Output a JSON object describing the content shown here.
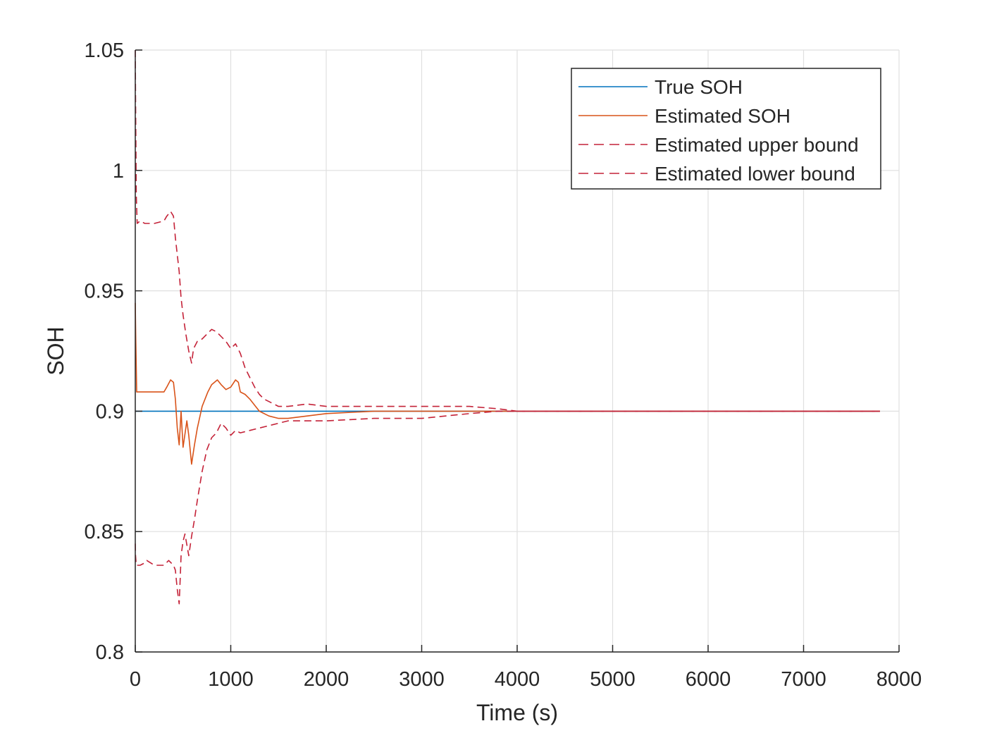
{
  "chart_data": {
    "type": "line",
    "title": "",
    "xlabel": "Time (s)",
    "ylabel": "SOH",
    "xlim": [
      0,
      8000
    ],
    "ylim": [
      0.8,
      1.05
    ],
    "xticks": [
      0,
      1000,
      2000,
      3000,
      4000,
      5000,
      6000,
      7000,
      8000
    ],
    "xtick_labels": [
      "0",
      "1000",
      "2000",
      "3000",
      "4000",
      "5000",
      "6000",
      "7000",
      "8000"
    ],
    "yticks": [
      0.8,
      0.85,
      0.9,
      0.95,
      1.0,
      1.05
    ],
    "ytick_labels": [
      "0.8",
      "0.85",
      "0.9",
      "0.95",
      "1",
      "1.05"
    ],
    "grid": true,
    "legend_position": "top-right",
    "series": [
      {
        "name": "True SOH",
        "color": "#0072BD",
        "style": "solid",
        "x": [
          0,
          7800
        ],
        "y": [
          0.9,
          0.9
        ]
      },
      {
        "name": "Estimated SOH",
        "color": "#D95319",
        "style": "solid",
        "x": [
          0,
          5,
          15,
          100,
          200,
          300,
          330,
          370,
          400,
          420,
          440,
          460,
          480,
          500,
          540,
          560,
          590,
          620,
          650,
          700,
          760,
          800,
          860,
          900,
          950,
          1000,
          1050,
          1080,
          1100,
          1150,
          1200,
          1300,
          1400,
          1500,
          1600,
          1800,
          2000,
          2500,
          3000,
          3500,
          3800,
          4000,
          5000,
          6000,
          7000,
          7800
        ],
        "y": [
          0.945,
          0.93,
          0.908,
          0.908,
          0.908,
          0.908,
          0.91,
          0.913,
          0.912,
          0.905,
          0.893,
          0.886,
          0.9,
          0.885,
          0.896,
          0.89,
          0.878,
          0.886,
          0.893,
          0.902,
          0.908,
          0.911,
          0.913,
          0.911,
          0.909,
          0.91,
          0.913,
          0.912,
          0.908,
          0.907,
          0.905,
          0.9,
          0.898,
          0.897,
          0.897,
          0.898,
          0.899,
          0.9,
          0.9,
          0.9,
          0.9,
          0.9,
          0.9,
          0.9,
          0.9,
          0.9
        ]
      },
      {
        "name": "Estimated upper bound",
        "color": "#C42238",
        "style": "dashed",
        "x": [
          0,
          3,
          10,
          20,
          50,
          100,
          200,
          300,
          330,
          370,
          400,
          420,
          440,
          460,
          480,
          500,
          530,
          560,
          590,
          610,
          650,
          700,
          750,
          800,
          850,
          900,
          950,
          1000,
          1050,
          1100,
          1150,
          1200,
          1250,
          1300,
          1350,
          1400,
          1500,
          1600,
          1800,
          2000,
          2500,
          3000,
          3200,
          3500,
          3800,
          4000,
          5000,
          6000,
          7000,
          7800
        ],
        "y": [
          1.05,
          1.03,
          0.99,
          0.978,
          0.979,
          0.978,
          0.978,
          0.979,
          0.981,
          0.983,
          0.981,
          0.972,
          0.965,
          0.958,
          0.947,
          0.94,
          0.932,
          0.925,
          0.92,
          0.926,
          0.929,
          0.93,
          0.932,
          0.934,
          0.933,
          0.931,
          0.929,
          0.926,
          0.928,
          0.924,
          0.918,
          0.914,
          0.91,
          0.907,
          0.905,
          0.904,
          0.902,
          0.902,
          0.903,
          0.902,
          0.902,
          0.902,
          0.902,
          0.902,
          0.901,
          0.9,
          0.9,
          0.9,
          0.9,
          0.9
        ]
      },
      {
        "name": "Estimated lower bound",
        "color": "#C42238",
        "style": "dashed",
        "x": [
          0,
          3,
          10,
          20,
          50,
          100,
          120,
          200,
          300,
          350,
          400,
          420,
          440,
          460,
          470,
          480,
          500,
          520,
          560,
          590,
          620,
          650,
          700,
          750,
          800,
          850,
          900,
          950,
          1000,
          1050,
          1100,
          1200,
          1300,
          1400,
          1500,
          1600,
          1800,
          2000,
          2500,
          3000,
          3500,
          3800,
          4000,
          5000,
          6000,
          7000,
          7800
        ],
        "y": [
          0.845,
          0.84,
          0.836,
          0.836,
          0.836,
          0.837,
          0.838,
          0.836,
          0.836,
          0.838,
          0.836,
          0.834,
          0.826,
          0.82,
          0.83,
          0.84,
          0.846,
          0.849,
          0.84,
          0.848,
          0.855,
          0.863,
          0.875,
          0.884,
          0.889,
          0.891,
          0.895,
          0.893,
          0.89,
          0.892,
          0.891,
          0.892,
          0.893,
          0.894,
          0.895,
          0.896,
          0.896,
          0.896,
          0.897,
          0.897,
          0.899,
          0.9,
          0.9,
          0.9,
          0.9,
          0.9,
          0.9
        ]
      }
    ]
  }
}
